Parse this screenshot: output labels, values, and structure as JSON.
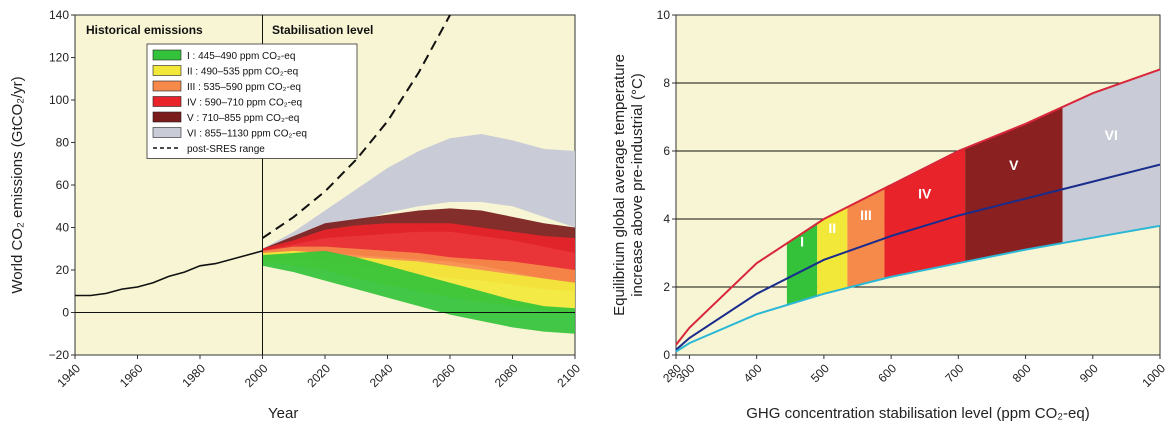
{
  "chart_data": [
    {
      "type": "area",
      "title": "",
      "xlabel": "Year",
      "ylabel": "World CO₂ emissions (GtCO₂/yr)",
      "xlim": [
        1940,
        2100
      ],
      "ylim": [
        -20,
        140
      ],
      "x_ticks": [
        "1940",
        "1960",
        "1980",
        "2000",
        "2020",
        "2040",
        "2060",
        "2080",
        "2100"
      ],
      "y_ticks": [
        "−20",
        "0",
        "20",
        "40",
        "60",
        "80",
        "100",
        "120",
        "140"
      ],
      "section_labels": [
        "Historical emissions",
        "Stabilisation level"
      ],
      "legend": {
        "placement": "top-left",
        "entries": [
          {
            "label": "I : 445–490 ppm CO₂-eq",
            "color": "#33c23a"
          },
          {
            "label": "II : 490–535 ppm CO₂-eq",
            "color": "#f2e83a"
          },
          {
            "label": "III : 535–590 ppm CO₂-eq",
            "color": "#f58a4a"
          },
          {
            "label": "IV : 590–710 ppm CO₂-eq",
            "color": "#e8242a"
          },
          {
            "label": "V : 710–855 ppm CO₂-eq",
            "color": "#7a1c1c"
          },
          {
            "label": "VI : 855–1130 ppm CO₂-eq",
            "color": "#c9ccd6"
          },
          {
            "label": "post-SRES range",
            "color": "#111111",
            "style": "dashed"
          }
        ]
      },
      "historical": {
        "x": [
          1940,
          1945,
          1950,
          1955,
          1960,
          1965,
          1970,
          1975,
          1980,
          1985,
          1990,
          1995,
          2000
        ],
        "y": [
          8,
          8,
          9,
          11,
          12,
          14,
          17,
          19,
          22,
          23,
          25,
          27,
          29
        ]
      },
      "post_sres_upper": {
        "x": [
          2000,
          2010,
          2020,
          2030,
          2040,
          2050,
          2060
        ],
        "y": [
          35,
          45,
          57,
          72,
          90,
          113,
          140
        ]
      },
      "series": [
        {
          "name": "VI",
          "color": "#c9ccd6",
          "x": [
            2000,
            2010,
            2020,
            2030,
            2040,
            2050,
            2060,
            2070,
            2080,
            2090,
            2100
          ],
          "lower": [
            30,
            34,
            38,
            43,
            47,
            50,
            52,
            52,
            50,
            45,
            40
          ],
          "upper": [
            30,
            38,
            48,
            58,
            68,
            76,
            82,
            84,
            81,
            77,
            76
          ]
        },
        {
          "name": "V",
          "color": "#7a1c1c",
          "x": [
            2000,
            2010,
            2020,
            2030,
            2040,
            2050,
            2060,
            2070,
            2080,
            2090,
            2100
          ],
          "lower": [
            29,
            32,
            35,
            36,
            37,
            38,
            38,
            36,
            34,
            31,
            28
          ],
          "upper": [
            30,
            36,
            42,
            44,
            46,
            48,
            49,
            48,
            45,
            42,
            40
          ]
        },
        {
          "name": "IV",
          "color": "#e8242a",
          "x": [
            2000,
            2010,
            2020,
            2030,
            2040,
            2050,
            2060,
            2070,
            2080,
            2090,
            2100
          ],
          "lower": [
            28,
            28,
            28,
            27,
            26,
            25,
            24,
            22,
            19,
            16,
            14
          ],
          "upper": [
            30,
            34,
            39,
            41,
            42,
            42,
            42,
            40,
            38,
            36,
            35
          ]
        },
        {
          "name": "III",
          "color": "#f58a4a",
          "x": [
            2000,
            2010,
            2020,
            2030,
            2040,
            2050,
            2060,
            2070,
            2080,
            2090,
            2100
          ],
          "lower": [
            26,
            25,
            24,
            22,
            20,
            18,
            16,
            15,
            13,
            11,
            10
          ],
          "upper": [
            29,
            31,
            31,
            30,
            29,
            28,
            26,
            25,
            24,
            22,
            20
          ]
        },
        {
          "name": "II",
          "color": "#f2e83a",
          "x": [
            2000,
            2010,
            2020,
            2030,
            2040,
            2050,
            2060,
            2070,
            2080,
            2090,
            2100
          ],
          "lower": [
            24,
            22,
            20,
            16,
            13,
            10,
            7,
            5,
            3,
            1,
            0
          ],
          "upper": [
            28,
            29,
            28,
            26,
            25,
            24,
            22,
            20,
            18,
            16,
            14
          ]
        },
        {
          "name": "I",
          "color": "#33c23a",
          "x": [
            2000,
            2010,
            2020,
            2030,
            2040,
            2050,
            2060,
            2070,
            2080,
            2090,
            2100
          ],
          "lower": [
            22,
            19,
            15,
            11,
            7,
            3,
            -1,
            -4,
            -7,
            -9,
            -10
          ],
          "upper": [
            27,
            28,
            29,
            26,
            22,
            18,
            14,
            10,
            6,
            3,
            2
          ]
        }
      ]
    },
    {
      "type": "area",
      "title": "",
      "xlabel": "GHG concentration stabilisation level (ppm CO₂-eq)",
      "ylabel_lines": [
        "Equilibrium global average temperature",
        "increase above pre-industrial (°C)"
      ],
      "xlim": [
        280,
        1000
      ],
      "ylim": [
        0,
        10
      ],
      "grid": "horizontal",
      "x_ticks": [
        "280",
        "300",
        "400",
        "500",
        "600",
        "700",
        "800",
        "900",
        "1000"
      ],
      "y_ticks": [
        "0",
        "2",
        "4",
        "6",
        "8",
        "10"
      ],
      "curves": [
        {
          "name": "upper",
          "color": "#d8263a",
          "x": [
            280,
            300,
            400,
            500,
            600,
            700,
            800,
            900,
            1000
          ],
          "y": [
            0.3,
            0.8,
            2.7,
            4.0,
            5.0,
            6.0,
            6.8,
            7.7,
            8.4
          ]
        },
        {
          "name": "best estimate",
          "color": "#1a2c8c",
          "x": [
            280,
            300,
            400,
            500,
            600,
            700,
            800,
            900,
            1000
          ],
          "y": [
            0.15,
            0.5,
            1.8,
            2.8,
            3.5,
            4.1,
            4.6,
            5.1,
            5.6
          ]
        },
        {
          "name": "lower",
          "color": "#2bb7d6",
          "x": [
            280,
            300,
            400,
            500,
            600,
            700,
            800,
            900,
            1000
          ],
          "y": [
            0.1,
            0.35,
            1.2,
            1.8,
            2.3,
            2.7,
            3.1,
            3.45,
            3.8
          ]
        }
      ],
      "bands": [
        {
          "label": "I",
          "from": 445,
          "to": 490,
          "color": "#33c23a"
        },
        {
          "label": "II",
          "from": 490,
          "to": 535,
          "color": "#f2e83a"
        },
        {
          "label": "III",
          "from": 535,
          "to": 590,
          "color": "#f58a4a"
        },
        {
          "label": "IV",
          "from": 590,
          "to": 710,
          "color": "#e8242a"
        },
        {
          "label": "V",
          "from": 710,
          "to": 855,
          "color": "#8a2020"
        },
        {
          "label": "VI",
          "from": 855,
          "to": 1130,
          "color": "#c9ccd6"
        }
      ]
    }
  ]
}
